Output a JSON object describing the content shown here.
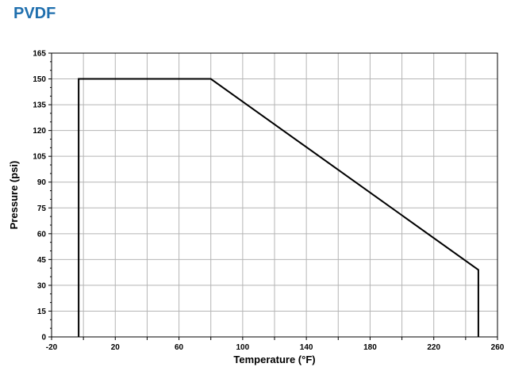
{
  "header": {
    "title": "PVDF"
  },
  "chart_data": {
    "type": "line",
    "title": "PVDF",
    "xlabel": "Temperature (°F)",
    "ylabel": "Pressure (psi)",
    "xlim": [
      -20,
      260
    ],
    "ylim": [
      0,
      165
    ],
    "xticks": [
      -20,
      0,
      20,
      40,
      60,
      80,
      100,
      120,
      140,
      160,
      180,
      200,
      220,
      240,
      260
    ],
    "xtick_labels": [
      "-20",
      "",
      "20",
      "",
      "60",
      "",
      "100",
      "",
      "140",
      "",
      "180",
      "",
      "220",
      "",
      "260"
    ],
    "yticks": [
      0,
      15,
      30,
      45,
      60,
      75,
      90,
      105,
      120,
      135,
      150,
      165
    ],
    "ytick_labels": [
      "0",
      "15",
      "30",
      "45",
      "60",
      "75",
      "90",
      "105",
      "120",
      "135",
      "150",
      "165"
    ],
    "grid": true,
    "legend": "none",
    "series": [
      {
        "x": [
          -3,
          -3,
          80,
          248,
          248
        ],
        "y": [
          0,
          150,
          150,
          39,
          0
        ],
        "color": "#000000"
      }
    ]
  }
}
